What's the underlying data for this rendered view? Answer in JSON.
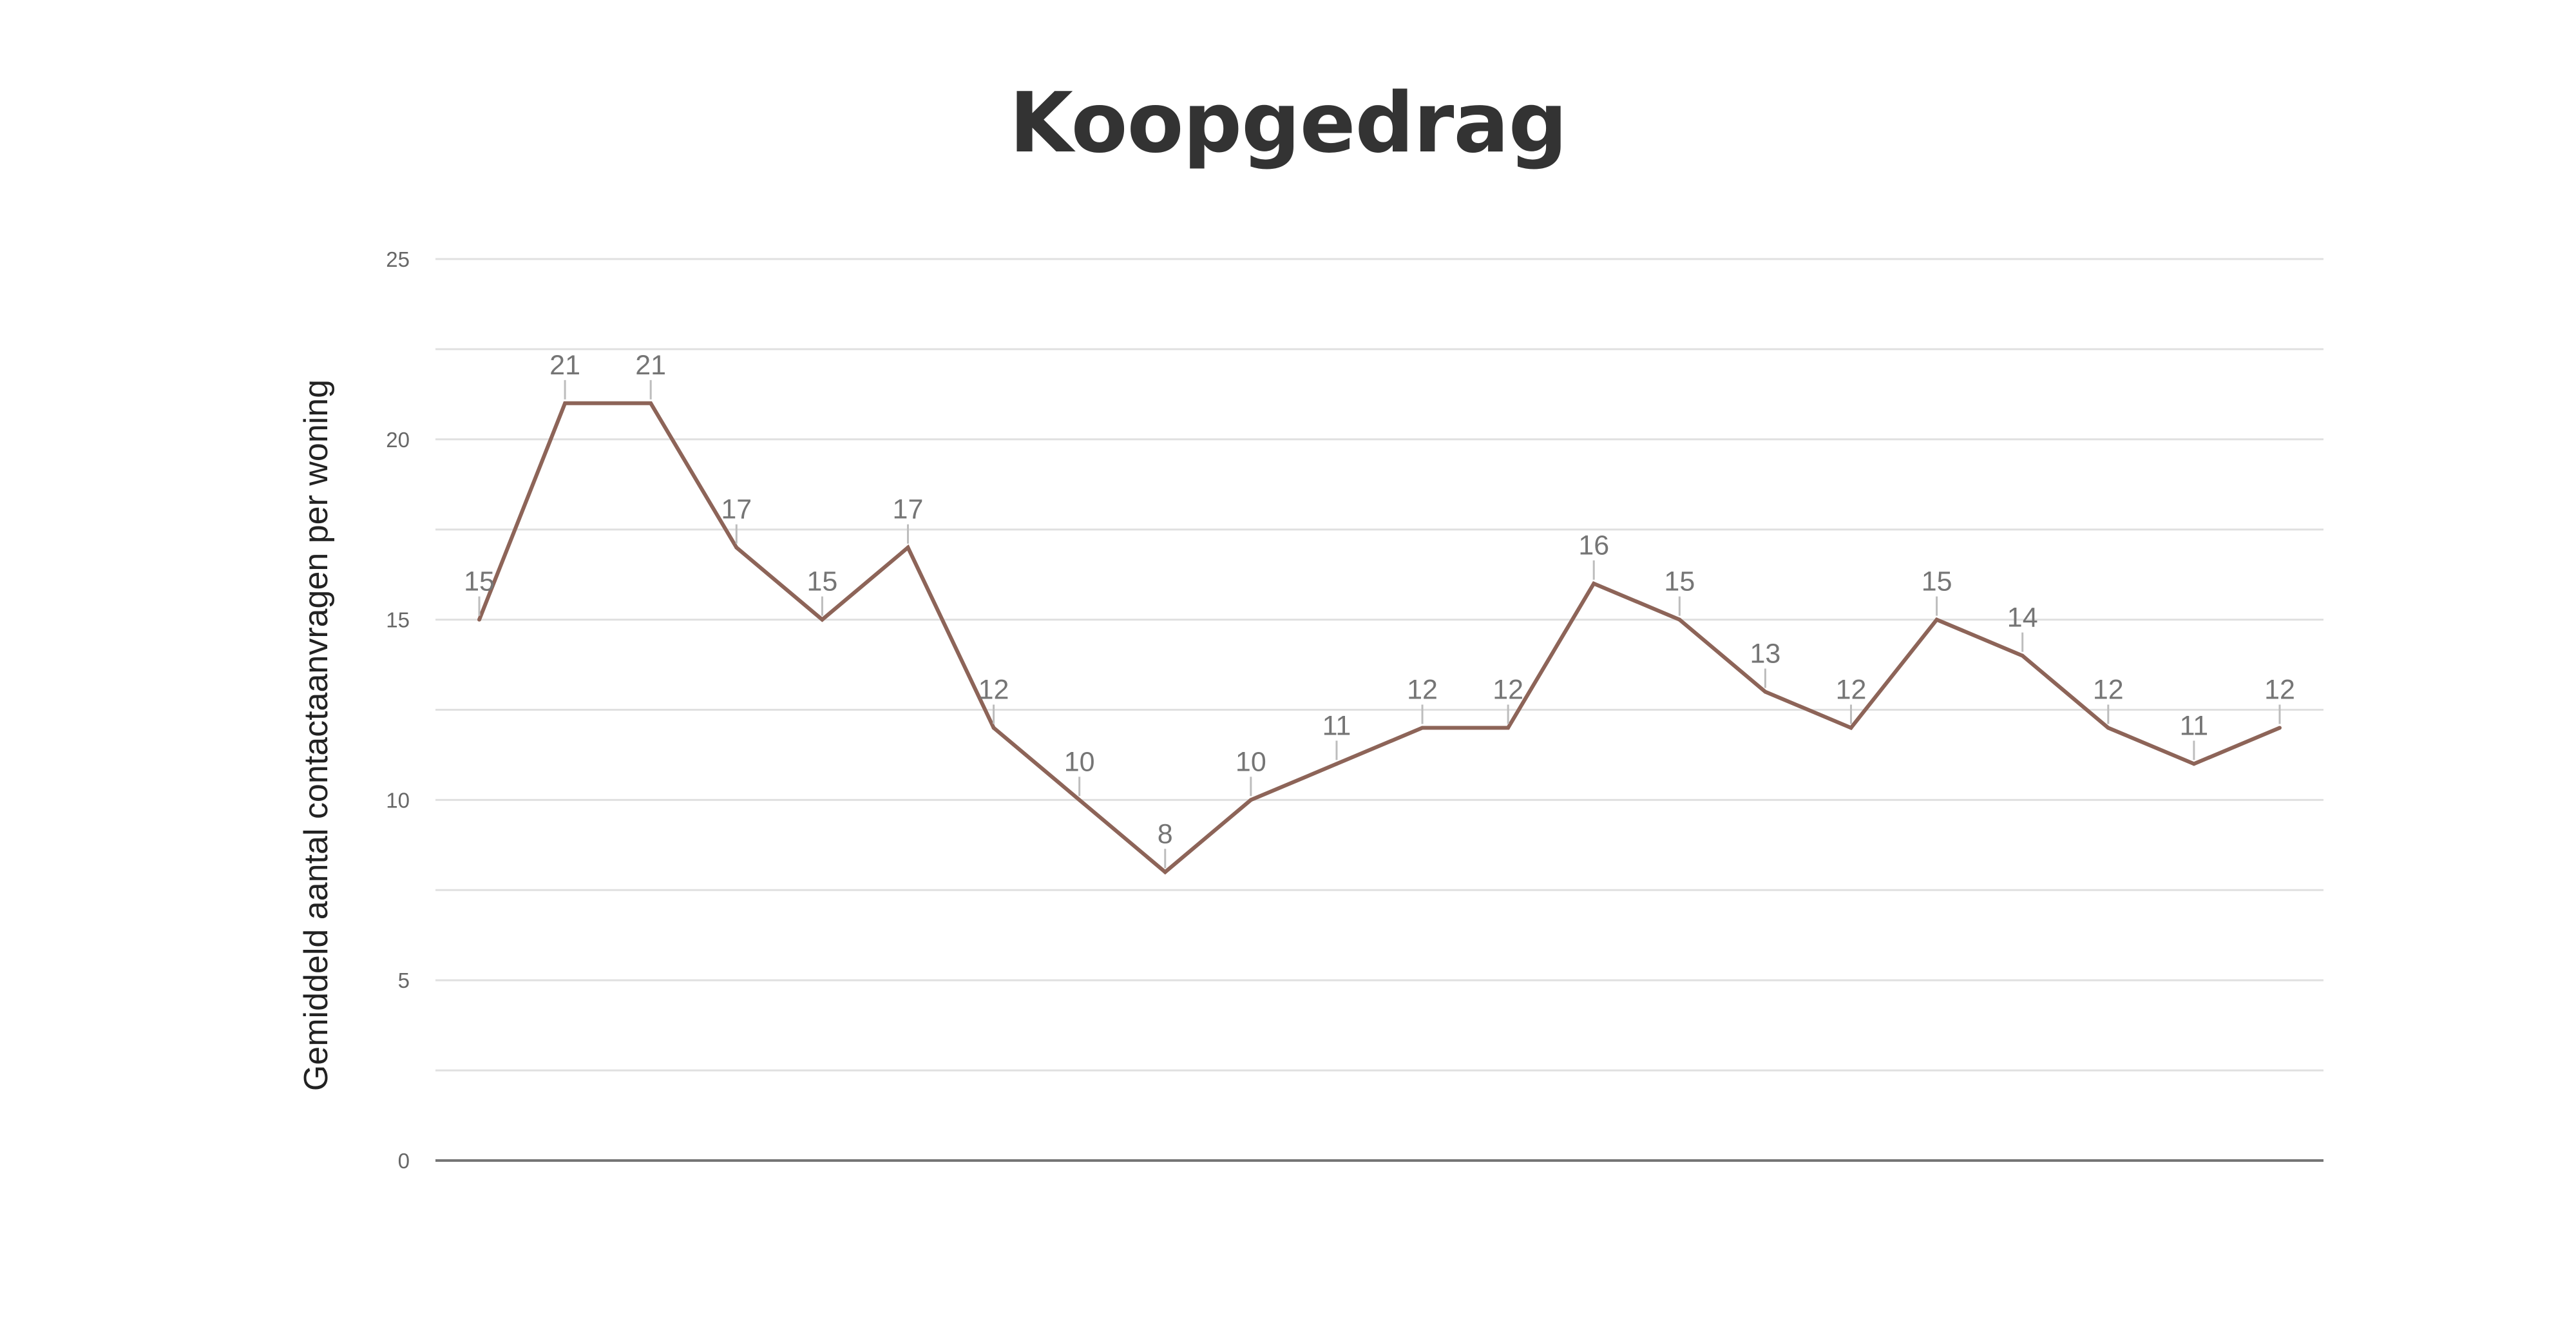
{
  "chart_data": {
    "type": "line",
    "title": "Koopgedrag",
    "xlabel": "",
    "ylabel": "Gemiddeld aantal contactaanvragen per woning",
    "ylim": [
      0,
      25
    ],
    "y_ticks": [
      "0",
      "5",
      "10",
      "15",
      "20",
      "25"
    ],
    "grid": true,
    "legend": "none",
    "series": [
      {
        "values": [
          15,
          21,
          21,
          17,
          15,
          17,
          12,
          10,
          8,
          10,
          11,
          12,
          12,
          16,
          15,
          13,
          12,
          15,
          14,
          12,
          11,
          12
        ],
        "color": "#8d6458"
      }
    ],
    "colors": {
      "grid": "#e0e0e0",
      "baseline": "#757575",
      "label_tick": "#bdbdbd"
    }
  }
}
